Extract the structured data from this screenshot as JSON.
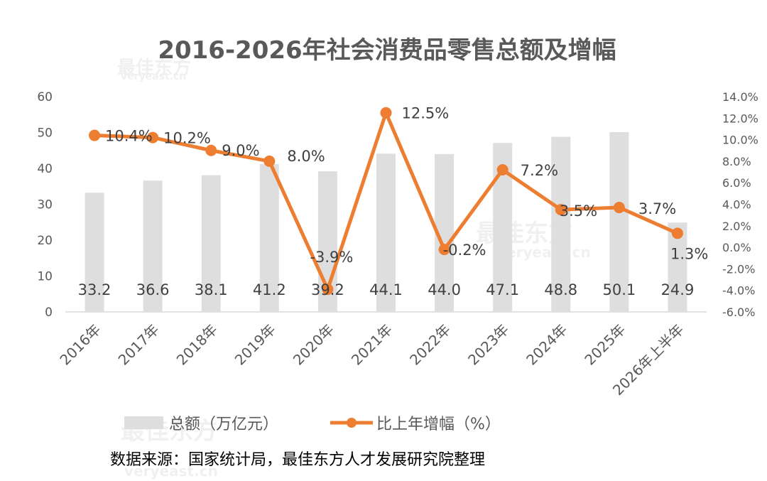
{
  "chart_data": {
    "type": "bar+line",
    "title": "2016-2026年社会消费品零售总额及增幅",
    "categories": [
      "2016年",
      "2017年",
      "2018年",
      "2019年",
      "2020年",
      "2021年",
      "2022年",
      "2023年",
      "2024年",
      "2025年",
      "2026年上半年"
    ],
    "series": [
      {
        "name": "总额（万亿元）",
        "type": "bar",
        "axis": "left",
        "values": [
          33.2,
          36.6,
          38.1,
          41.2,
          39.2,
          44.1,
          44.0,
          47.1,
          48.8,
          50.1,
          24.9
        ],
        "labels": [
          "33.2",
          "36.6",
          "38.1",
          "41.2",
          "39.2",
          "44.1",
          "44.0",
          "47.1",
          "48.8",
          "50.1",
          "24.9"
        ]
      },
      {
        "name": "比上年增幅（%）",
        "type": "line",
        "axis": "right",
        "values": [
          10.4,
          10.2,
          9.0,
          8.0,
          -3.9,
          12.5,
          -0.2,
          7.2,
          3.5,
          3.7,
          1.3
        ],
        "labels": [
          "10.4%",
          "10.2%",
          "9.0%",
          "8.0%",
          "-3.9%",
          "12.5%",
          "-0.2%",
          "7.2%",
          "3.5%",
          "3.7%",
          "1.3%"
        ]
      }
    ],
    "y_left": {
      "range": [
        0,
        60
      ],
      "ticks": [
        "0",
        "10",
        "20",
        "30",
        "40",
        "50",
        "60"
      ]
    },
    "y_right": {
      "range": [
        -6,
        14
      ],
      "ticks": [
        "-6.0%",
        "-4.0%",
        "-2.0%",
        "0.0%",
        "2.0%",
        "4.0%",
        "6.0%",
        "8.0%",
        "10.0%",
        "12.0%",
        "14.0%"
      ]
    },
    "grid": false,
    "legend_position": "bottom",
    "colors": {
      "bar": "#dedede",
      "line": "#ed7d31",
      "text": "#595959",
      "axis": "#d9d9d9"
    },
    "watermark": [
      "最佳东方",
      "veryeast.cn"
    ]
  },
  "source": "数据来源：国家统计局，最佳东方人才发展研究院整理"
}
